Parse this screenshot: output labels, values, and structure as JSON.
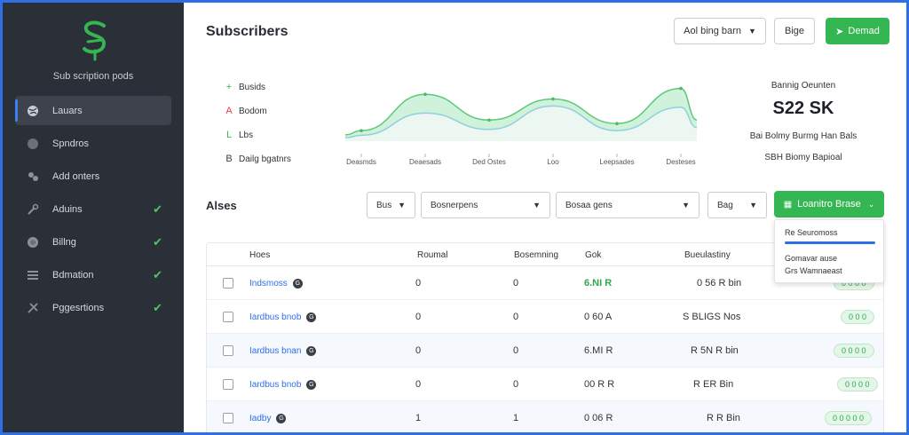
{
  "colors": {
    "frame": "#2f6fe6",
    "sidebar_bg": "#2b2f37",
    "accent_green": "#34b653",
    "link_blue": "#2f6fe6"
  },
  "sidebar": {
    "logo_icon": "s-logo-icon",
    "brand": "Sub scription pods",
    "items": [
      {
        "label": "Lauars",
        "icon": "globe-icon",
        "active": true,
        "checked": false
      },
      {
        "label": "Spndros",
        "icon": "circle-icon",
        "active": false,
        "checked": false
      },
      {
        "label": "Add onters",
        "icon": "users-icon",
        "active": false,
        "checked": false
      },
      {
        "label": "Aduins",
        "icon": "wrench-icon",
        "active": false,
        "checked": true
      },
      {
        "label": "Billng",
        "icon": "coin-icon",
        "active": false,
        "checked": true
      },
      {
        "label": "Bdmation",
        "icon": "list-icon",
        "active": false,
        "checked": true
      },
      {
        "label": "Pggesrtions",
        "icon": "tools-icon",
        "active": false,
        "checked": true
      }
    ]
  },
  "header": {
    "title": "Subscribers",
    "dropdown_label": "Aol bing barn",
    "btn_secondary": "Bige",
    "btn_primary": "Demad"
  },
  "chart_data": {
    "type": "area",
    "categories": [
      "Deasmds",
      "Deaesads",
      "Ded Ostes",
      "Loo",
      "Leepsades",
      "Desteses"
    ],
    "series": [
      {
        "values": [
          18,
          80,
          36,
          72,
          30,
          90
        ]
      },
      {
        "values": [
          10,
          48,
          20,
          60,
          18,
          58
        ]
      }
    ],
    "legend": [
      {
        "marker": "+",
        "label": "Busids",
        "color": "#34b653"
      },
      {
        "marker": "A",
        "label": "Bodom",
        "color": "#e04545"
      },
      {
        "marker": "L",
        "label": "Lbs",
        "color": "#34b653"
      },
      {
        "marker": "B",
        "label": "Dailg bgatnrs",
        "color": "#3a3e46"
      }
    ],
    "legend_position": "left",
    "grid": false
  },
  "stats": {
    "label": "Bannig Oeunten",
    "value": "S22 SK",
    "sub1": "Bai Bolmy Burmg Han Bals",
    "sub2": "SBH Biomy Bapioal"
  },
  "filters": {
    "section_title": "Alses",
    "f1": "Bus",
    "f2": "Bosnerpens",
    "f3": "Bosaa gens",
    "f4": "Bag",
    "action_label": "Loanitro Brase",
    "action_icon": "grid-icon",
    "menu": {
      "item1": "Re Seuromoss",
      "item2": "Gomavar ause",
      "item3": "Grs Wamnaeast"
    }
  },
  "table": {
    "headers": [
      "Hoes",
      "Roumal",
      "Bosemning",
      "Gok",
      "Bueulastiny"
    ],
    "rows": [
      {
        "name": "Indsmoss",
        "badge": "G",
        "c1": "0",
        "c2": "0",
        "c3": "6.NI R",
        "c3_green": true,
        "c4": "0 56 R bin",
        "pill": "0 0 0 0"
      },
      {
        "name": "Iardbus bnob",
        "badge": "G",
        "c1": "0",
        "c2": "0",
        "c3": "0 60 A",
        "c3_green": false,
        "c4": "S BLIGS Nos",
        "pill": "0 0 0"
      },
      {
        "name": "Iardbus bnan",
        "badge": "G",
        "c1": "0",
        "c2": "0",
        "c3": "6.MI R",
        "c3_green": false,
        "c4": "R 5N R bin",
        "pill": "0 0 0 0"
      },
      {
        "name": "Iardbus bnob",
        "badge": "G",
        "c1": "0",
        "c2": "0",
        "c3": "00 R R",
        "c3_green": false,
        "c4": "R ER Bin",
        "pill": "0 0 0 0"
      },
      {
        "name": "Iadby",
        "badge": "G",
        "c1": "1",
        "c2": "1",
        "c3": "0 06 R",
        "c3_green": false,
        "c4": "R R Bin",
        "pill": "0 0 0 0 0"
      }
    ]
  }
}
